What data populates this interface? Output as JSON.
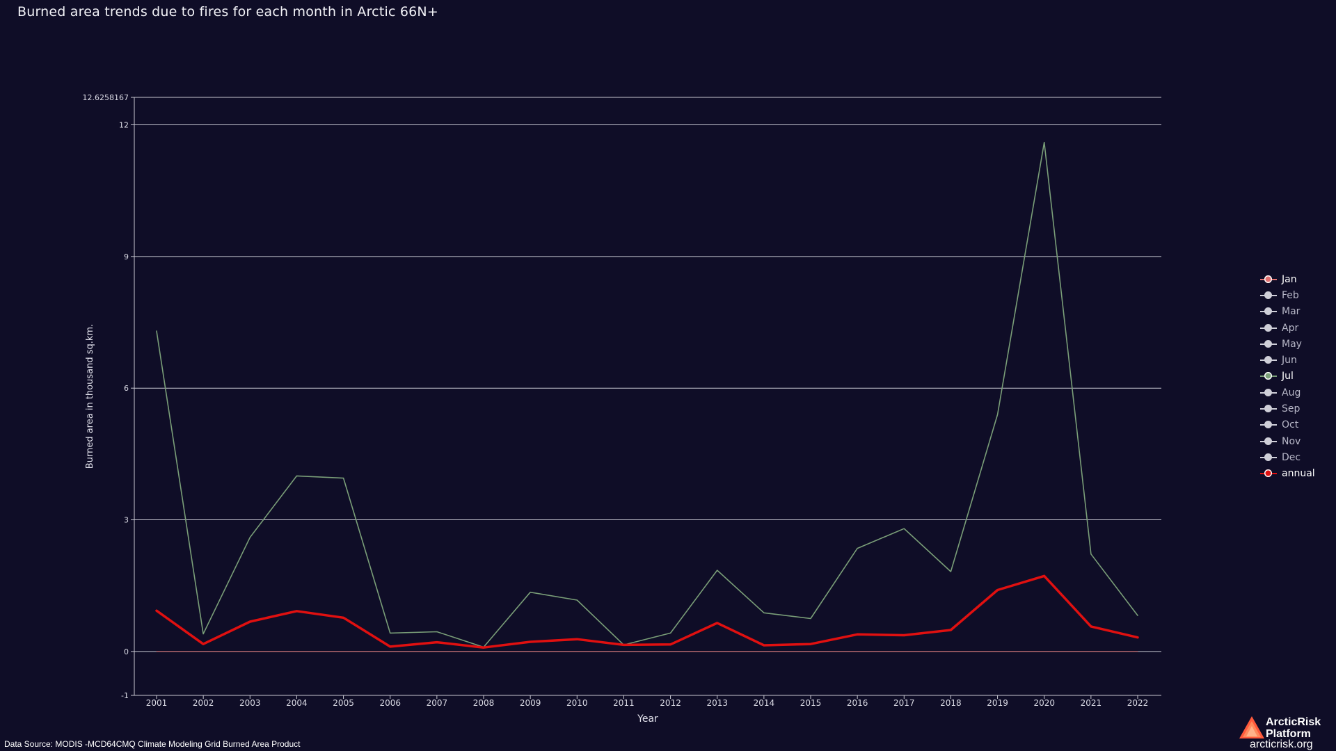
{
  "title": "Burned area trends due to fires for each month in Arctic 66N+",
  "source_note": "Data Source: MODIS -MCD64CMQ Climate Modeling Grid Burned Area Product",
  "brand": {
    "name_line1": "ArcticRisk",
    "name_line2": "Platform",
    "url": "arcticrisk.org"
  },
  "legend": [
    {
      "label": "Jan",
      "color": "#e07070",
      "active": true
    },
    {
      "label": "Feb",
      "color": "#cfcfd8",
      "active": false
    },
    {
      "label": "Mar",
      "color": "#cfcfd8",
      "active": false
    },
    {
      "label": "Apr",
      "color": "#cfcfd8",
      "active": false
    },
    {
      "label": "May",
      "color": "#cfcfd8",
      "active": false
    },
    {
      "label": "Jun",
      "color": "#cfcfd8",
      "active": false
    },
    {
      "label": "Jul",
      "color": "#7a9e78",
      "active": true
    },
    {
      "label": "Aug",
      "color": "#cfcfd8",
      "active": false
    },
    {
      "label": "Sep",
      "color": "#cfcfd8",
      "active": false
    },
    {
      "label": "Oct",
      "color": "#cfcfd8",
      "active": false
    },
    {
      "label": "Nov",
      "color": "#cfcfd8",
      "active": false
    },
    {
      "label": "Dec",
      "color": "#cfcfd8",
      "active": false
    },
    {
      "label": "annual",
      "color": "#e01010",
      "active": true
    }
  ],
  "chart_data": {
    "type": "line",
    "xlabel": "Year",
    "ylabel": "Burned area in thousand sq.km.",
    "ylim": [
      -1,
      12.6258167
    ],
    "yticks": [
      {
        "value": -1,
        "label": "-1"
      },
      {
        "value": 0,
        "label": "0"
      },
      {
        "value": 3,
        "label": "3"
      },
      {
        "value": 6,
        "label": "6"
      },
      {
        "value": 9,
        "label": "9"
      },
      {
        "value": 12,
        "label": "12"
      },
      {
        "value": 12.6258167,
        "label": "12.6258167"
      }
    ],
    "grid": true,
    "legend_position": "right",
    "x": [
      "2001",
      "2002",
      "2003",
      "2004",
      "2005",
      "2006",
      "2007",
      "2008",
      "2009",
      "2010",
      "2011",
      "2012",
      "2013",
      "2014",
      "2015",
      "2016",
      "2017",
      "2018",
      "2019",
      "2020",
      "2021",
      "2022"
    ],
    "series": [
      {
        "name": "Jan",
        "color": "#e07070",
        "width": 1,
        "values": [
          0,
          0,
          0,
          0,
          0,
          0,
          0,
          0,
          0,
          0,
          0,
          0,
          0,
          0,
          0,
          0,
          0,
          0,
          0,
          0,
          0,
          0
        ]
      },
      {
        "name": "Jul",
        "color": "#7a9e78",
        "width": 1.6,
        "values": [
          7.3,
          0.4,
          2.6,
          4.0,
          3.95,
          0.42,
          0.45,
          0.1,
          1.35,
          1.17,
          0.15,
          0.42,
          1.85,
          0.88,
          0.75,
          2.35,
          2.8,
          1.82,
          5.4,
          11.6,
          2.22,
          0.82
        ]
      },
      {
        "name": "annual",
        "color": "#e01010",
        "width": 3.5,
        "values": [
          0.93,
          0.17,
          0.68,
          0.92,
          0.77,
          0.11,
          0.21,
          0.09,
          0.22,
          0.28,
          0.15,
          0.16,
          0.65,
          0.14,
          0.17,
          0.39,
          0.37,
          0.49,
          1.4,
          1.72,
          0.57,
          0.32
        ]
      }
    ]
  }
}
